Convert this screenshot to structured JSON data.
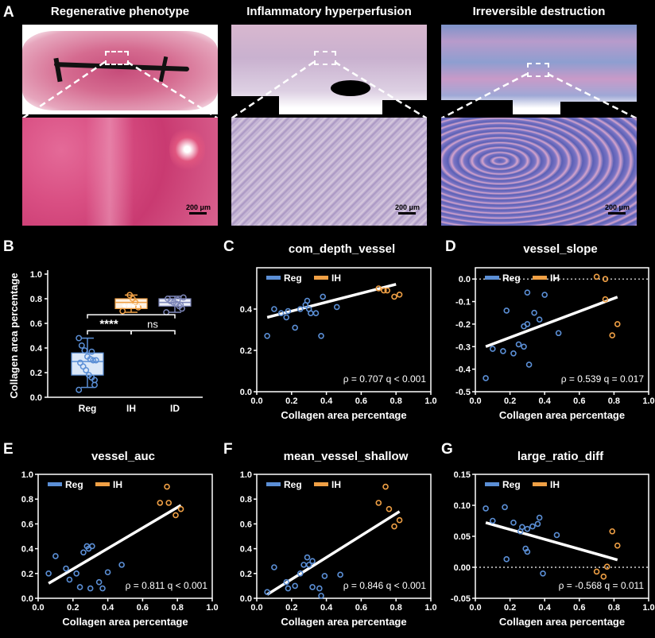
{
  "panelA": {
    "letter": "A",
    "titles": [
      "Regenerative phenotype",
      "Inflammatory hyperperfusion",
      "Irreversible destruction"
    ],
    "scale_label": "200 μm"
  },
  "panelB": {
    "letter": "B",
    "stars_top": "****",
    "stars_left": "****",
    "ns": "ns"
  },
  "colors": {
    "reg": "#5b8fd6",
    "ih": "#f0a045",
    "id": "#7d86b8"
  },
  "legend": {
    "reg": "Reg",
    "ih": "IH"
  },
  "xlabel": "Collagen area percentage",
  "chart_data": [
    {
      "id": "B",
      "type": "box",
      "categories": [
        "Reg",
        "IH",
        "ID"
      ],
      "ylabel": "Collagen area percentage",
      "ylim": [
        0.0,
        1.0
      ],
      "yticks": [
        "0.0",
        "0.2",
        "0.4",
        "0.6",
        "0.8",
        "1.0"
      ],
      "boxes": [
        {
          "min": 0.08,
          "q1": 0.18,
          "median": 0.29,
          "q3": 0.36,
          "max": 0.48
        },
        {
          "min": 0.69,
          "q1": 0.72,
          "median": 0.77,
          "q3": 0.8,
          "max": 0.83
        },
        {
          "min": 0.69,
          "q1": 0.74,
          "median": 0.77,
          "q3": 0.8,
          "max": 0.82
        }
      ],
      "points": [
        [
          0.06,
          0.1,
          0.16,
          0.18,
          0.22,
          0.25,
          0.28,
          0.3,
          0.3,
          0.31,
          0.33,
          0.38,
          0.42,
          0.48,
          0.14,
          0.37
        ],
        [
          0.7,
          0.73,
          0.77,
          0.8,
          0.83
        ],
        [
          0.69,
          0.72,
          0.74,
          0.76,
          0.77,
          0.78,
          0.8,
          0.81,
          0.75,
          0.79
        ]
      ]
    },
    {
      "id": "C",
      "letter": "C",
      "title": "com_depth_vessel",
      "type": "scatter",
      "xlim": [
        0.0,
        1.0
      ],
      "ylim": [
        0.0,
        0.6
      ],
      "xticks": [
        "0.0",
        "0.2",
        "0.4",
        "0.6",
        "0.8",
        "1.0"
      ],
      "yticks": [
        "0.0",
        "0.2",
        "0.4"
      ],
      "ytick_vals": [
        0.0,
        0.2,
        0.4
      ],
      "reg": [
        [
          0.06,
          0.27
        ],
        [
          0.1,
          0.4
        ],
        [
          0.17,
          0.36
        ],
        [
          0.18,
          0.39
        ],
        [
          0.22,
          0.31
        ],
        [
          0.25,
          0.4
        ],
        [
          0.28,
          0.42
        ],
        [
          0.29,
          0.44
        ],
        [
          0.3,
          0.4
        ],
        [
          0.31,
          0.38
        ],
        [
          0.34,
          0.38
        ],
        [
          0.37,
          0.27
        ],
        [
          0.38,
          0.46
        ],
        [
          0.46,
          0.41
        ],
        [
          0.14,
          0.38
        ]
      ],
      "ih": [
        [
          0.7,
          0.5
        ],
        [
          0.73,
          0.49
        ],
        [
          0.75,
          0.49
        ],
        [
          0.79,
          0.46
        ],
        [
          0.82,
          0.47
        ]
      ],
      "fit": [
        [
          0.06,
          0.36
        ],
        [
          0.8,
          0.52
        ]
      ],
      "zero_line": false,
      "stat": "ρ = 0.707  q < 0.001"
    },
    {
      "id": "D",
      "letter": "D",
      "title": "vessel_slope",
      "type": "scatter",
      "xlim": [
        0.0,
        1.0
      ],
      "ylim": [
        -0.5,
        0.05
      ],
      "xticks": [
        "0.0",
        "0.2",
        "0.4",
        "0.6",
        "0.8",
        "1.0"
      ],
      "yticks": [
        "0.0",
        "-0.1",
        "-0.2",
        "-0.3",
        "-0.4",
        "-0.5"
      ],
      "ytick_vals": [
        0.0,
        -0.1,
        -0.2,
        -0.3,
        -0.4,
        -0.5
      ],
      "reg": [
        [
          0.06,
          -0.44
        ],
        [
          0.1,
          -0.31
        ],
        [
          0.16,
          -0.32
        ],
        [
          0.18,
          -0.14
        ],
        [
          0.22,
          -0.33
        ],
        [
          0.25,
          -0.29
        ],
        [
          0.28,
          -0.21
        ],
        [
          0.3,
          -0.06
        ],
        [
          0.3,
          -0.2
        ],
        [
          0.31,
          -0.38
        ],
        [
          0.34,
          -0.15
        ],
        [
          0.37,
          -0.18
        ],
        [
          0.4,
          -0.07
        ],
        [
          0.48,
          -0.24
        ],
        [
          0.28,
          -0.3
        ]
      ],
      "ih": [
        [
          0.7,
          0.01
        ],
        [
          0.75,
          0.0
        ],
        [
          0.75,
          -0.09
        ],
        [
          0.79,
          -0.25
        ],
        [
          0.82,
          -0.2
        ]
      ],
      "fit": [
        [
          0.06,
          -0.3
        ],
        [
          0.82,
          -0.08
        ]
      ],
      "zero_line": true,
      "stat": "ρ = 0.539  q = 0.017"
    },
    {
      "id": "E",
      "letter": "E",
      "title": "vessel_auc",
      "type": "scatter",
      "xlim": [
        0.0,
        1.0
      ],
      "ylim": [
        0.0,
        1.0
      ],
      "xticks": [
        "0.0",
        "0.2",
        "0.4",
        "0.6",
        "0.8",
        "1.0"
      ],
      "yticks": [
        "0.0",
        "0.2",
        "0.4",
        "0.6",
        "0.8",
        "1.0"
      ],
      "ytick_vals": [
        0.0,
        0.2,
        0.4,
        0.6,
        0.8,
        1.0
      ],
      "reg": [
        [
          0.06,
          0.2
        ],
        [
          0.1,
          0.34
        ],
        [
          0.16,
          0.24
        ],
        [
          0.18,
          0.15
        ],
        [
          0.22,
          0.2
        ],
        [
          0.26,
          0.37
        ],
        [
          0.28,
          0.42
        ],
        [
          0.3,
          0.08
        ],
        [
          0.31,
          0.42
        ],
        [
          0.35,
          0.13
        ],
        [
          0.37,
          0.08
        ],
        [
          0.4,
          0.21
        ],
        [
          0.48,
          0.27
        ],
        [
          0.29,
          0.4
        ],
        [
          0.24,
          0.09
        ]
      ],
      "ih": [
        [
          0.7,
          0.77
        ],
        [
          0.74,
          0.9
        ],
        [
          0.75,
          0.77
        ],
        [
          0.79,
          0.67
        ],
        [
          0.82,
          0.72
        ]
      ],
      "fit": [
        [
          0.06,
          0.12
        ],
        [
          0.82,
          0.75
        ]
      ],
      "zero_line": false,
      "stat": "ρ = 0.811  q < 0.001"
    },
    {
      "id": "F",
      "letter": "F",
      "title": "mean_vessel_shallow",
      "type": "scatter",
      "xlim": [
        0.0,
        1.0
      ],
      "ylim": [
        0.0,
        1.0
      ],
      "xticks": [
        "0.0",
        "0.2",
        "0.4",
        "0.6",
        "0.8",
        "1.0"
      ],
      "yticks": [
        "0.0",
        "0.2",
        "0.4",
        "0.6",
        "0.8",
        "1.0"
      ],
      "ytick_vals": [
        0.0,
        0.2,
        0.4,
        0.6,
        0.8,
        1.0
      ],
      "reg": [
        [
          0.06,
          0.05
        ],
        [
          0.1,
          0.25
        ],
        [
          0.17,
          0.13
        ],
        [
          0.18,
          0.08
        ],
        [
          0.22,
          0.1
        ],
        [
          0.27,
          0.27
        ],
        [
          0.29,
          0.33
        ],
        [
          0.3,
          0.27
        ],
        [
          0.32,
          0.09
        ],
        [
          0.36,
          0.08
        ],
        [
          0.37,
          0.02
        ],
        [
          0.39,
          0.18
        ],
        [
          0.48,
          0.19
        ],
        [
          0.32,
          0.3
        ],
        [
          0.25,
          0.2
        ]
      ],
      "ih": [
        [
          0.7,
          0.77
        ],
        [
          0.74,
          0.9
        ],
        [
          0.76,
          0.72
        ],
        [
          0.79,
          0.58
        ],
        [
          0.82,
          0.63
        ]
      ],
      "fit": [
        [
          0.06,
          0.03
        ],
        [
          0.82,
          0.7
        ]
      ],
      "zero_line": false,
      "stat": "ρ = 0.846  q < 0.001"
    },
    {
      "id": "G",
      "letter": "G",
      "title": "large_ratio_diff",
      "type": "scatter",
      "xlim": [
        0.0,
        1.0
      ],
      "ylim": [
        -0.05,
        0.15
      ],
      "xticks": [
        "0.0",
        "0.2",
        "0.4",
        "0.6",
        "0.8",
        "1.0"
      ],
      "yticks": [
        "0.15",
        "0.10",
        "0.05",
        "0.00",
        "-0.05"
      ],
      "ytick_vals": [
        0.15,
        0.1,
        0.05,
        0.0,
        -0.05
      ],
      "reg": [
        [
          0.06,
          0.095
        ],
        [
          0.1,
          0.075
        ],
        [
          0.17,
          0.097
        ],
        [
          0.18,
          0.013
        ],
        [
          0.22,
          0.072
        ],
        [
          0.27,
          0.065
        ],
        [
          0.29,
          0.03
        ],
        [
          0.3,
          0.062
        ],
        [
          0.3,
          0.025
        ],
        [
          0.33,
          0.066
        ],
        [
          0.36,
          0.07
        ],
        [
          0.37,
          0.08
        ],
        [
          0.39,
          -0.01
        ],
        [
          0.47,
          0.052
        ],
        [
          0.26,
          0.058
        ]
      ],
      "ih": [
        [
          0.7,
          -0.007
        ],
        [
          0.74,
          -0.015
        ],
        [
          0.76,
          0.001
        ],
        [
          0.79,
          0.058
        ],
        [
          0.82,
          0.035
        ]
      ],
      "fit": [
        [
          0.06,
          0.072
        ],
        [
          0.82,
          0.012
        ]
      ],
      "zero_line": true,
      "stat": "ρ = -0.568  q = 0.011"
    }
  ]
}
